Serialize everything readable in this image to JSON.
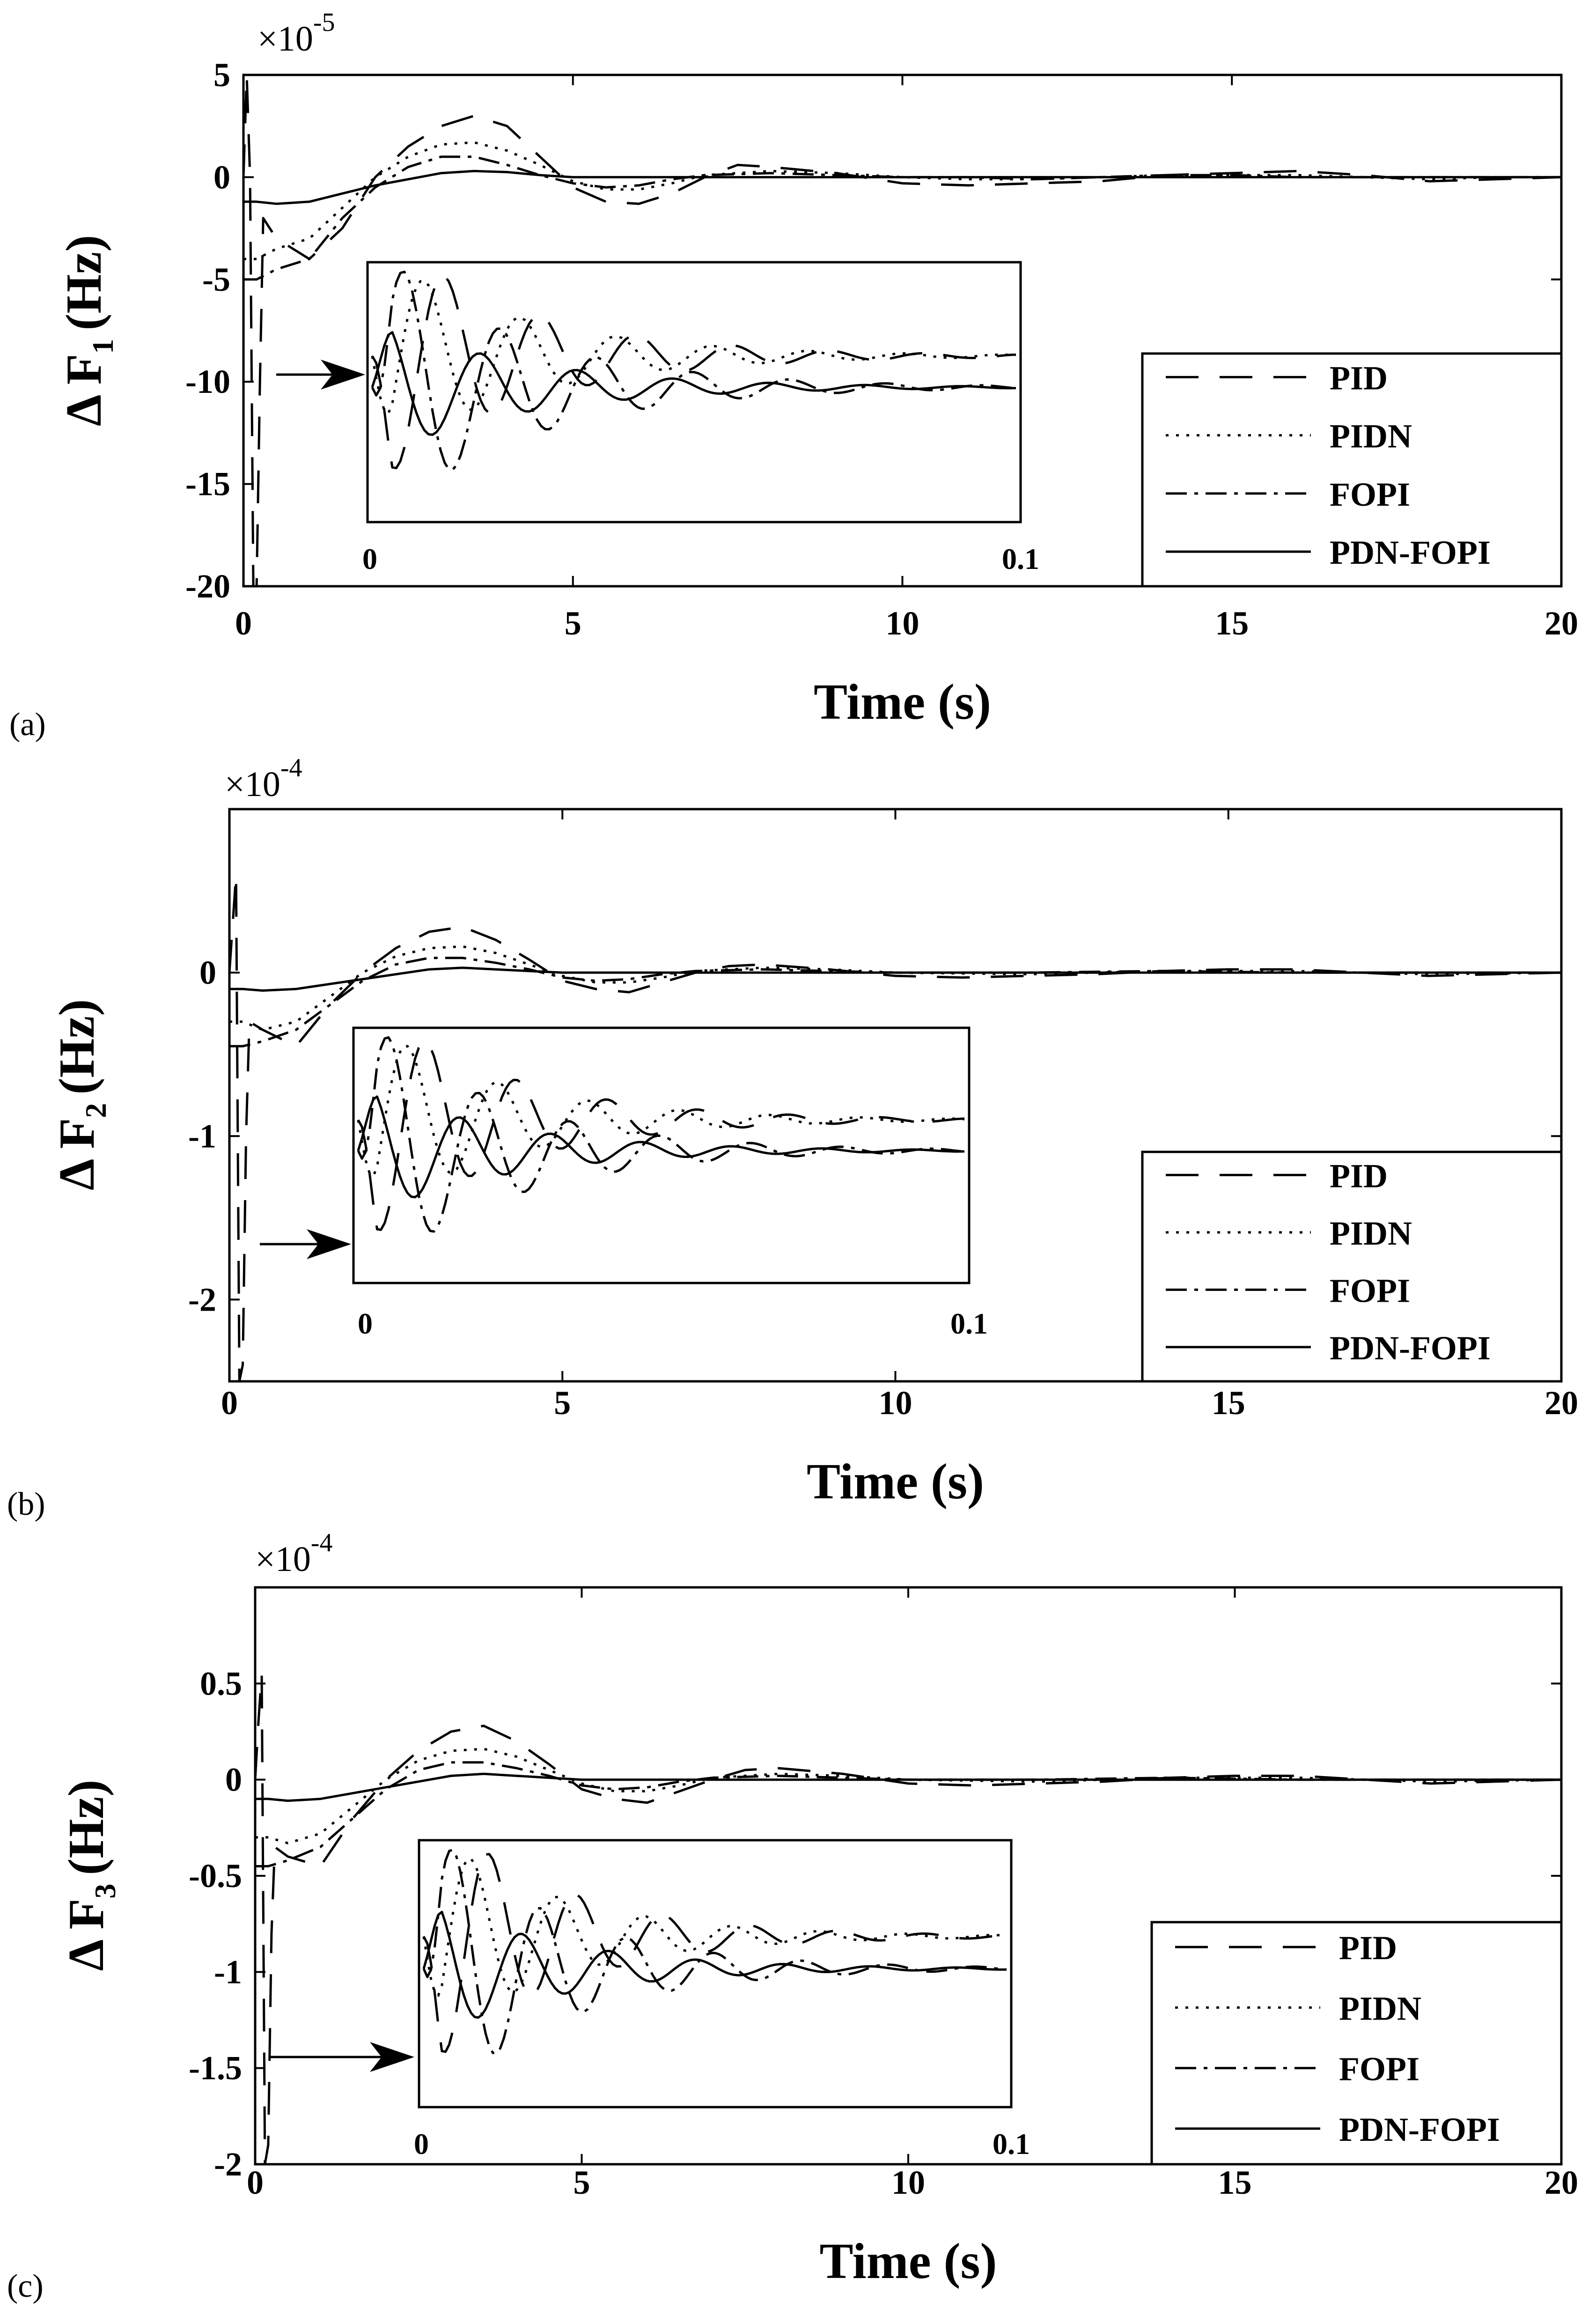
{
  "figure": {
    "x_axis_title": "Time (s)",
    "legend_labels": [
      "PID",
      "PIDN",
      "FOPI",
      "PDN-FOPI"
    ],
    "x_ticks": [
      "0",
      "5",
      "10",
      "15",
      "20"
    ],
    "inset_ticks": [
      "0",
      "0.1"
    ]
  },
  "chart_data": [
    {
      "type": "line",
      "panel_label": "(a)",
      "title": "",
      "xlabel": "Time (s)",
      "ylabel": "Δ F1 (Hz)",
      "ylabel_symbol": "Δ F",
      "ylabel_sub": "1",
      "ylabel_unit": "(Hz)",
      "exponent_base": "×10",
      "exponent_power": "-5",
      "xlim": [
        0,
        20
      ],
      "ylim": [
        -20,
        5
      ],
      "x_ticks": [
        0,
        5,
        10,
        15,
        20
      ],
      "x_tick_labels": [
        "0",
        "5",
        "10",
        "15",
        "20"
      ],
      "y_ticks": [
        5,
        0,
        -5,
        -10,
        -15,
        -20
      ],
      "y_tick_labels": [
        "5",
        "0",
        "-5",
        "-10",
        "-15",
        "-20"
      ],
      "legend": [
        "PID",
        "PIDN",
        "FOPI",
        "PDN-FOPI"
      ],
      "legend_position": "right",
      "inset_x_labels": [
        "0",
        "0.1"
      ],
      "series": [
        {
          "name": "PID",
          "x": [
            0,
            0.05,
            0.1,
            0.15,
            0.2,
            0.25,
            0.3,
            0.5,
            1.0,
            1.5,
            2.0,
            2.5,
            3.0,
            3.5,
            4.0,
            4.5,
            5.0,
            5.5,
            6.0,
            6.5,
            7.0,
            7.5,
            8.0,
            9.0,
            10.0,
            11.0,
            12.0,
            13.0,
            14.0,
            15.0,
            16.0,
            17.0,
            18.0,
            19.0,
            20.0
          ],
          "y": [
            0,
            5,
            0,
            -20,
            -20,
            -10,
            -2,
            -3,
            -4,
            -2.5,
            0,
            1.5,
            2.5,
            3.0,
            2.5,
            1.0,
            -0.5,
            -1.2,
            -1.3,
            -0.8,
            0,
            0.6,
            0.5,
            0.2,
            -0.3,
            -0.4,
            -0.3,
            -0.2,
            0.1,
            0.2,
            0.3,
            0.1,
            -0.2,
            -0.1,
            0
          ]
        },
        {
          "name": "PIDN",
          "x": [
            0,
            0.2,
            0.5,
            1.0,
            1.5,
            2.0,
            2.5,
            3.0,
            3.5,
            4.0,
            4.5,
            5.0,
            5.5,
            6.0,
            6.5,
            7.0,
            8.0,
            9.0,
            10.0,
            11.0,
            12.0,
            13.0,
            14.0,
            15.0,
            16.0,
            17.0,
            18.0,
            19.0,
            20.0
          ],
          "y": [
            -4,
            -4,
            -3.5,
            -3.0,
            -1.5,
            0,
            1.0,
            1.6,
            1.7,
            1.3,
            0.6,
            -0.2,
            -0.6,
            -0.6,
            -0.3,
            0.1,
            0.3,
            0.2,
            0,
            -0.1,
            -0.1,
            0,
            0.1,
            0.1,
            0.1,
            0,
            -0.1,
            0,
            0
          ]
        },
        {
          "name": "FOPI",
          "x": [
            0,
            0.2,
            0.5,
            1.0,
            1.5,
            2.0,
            2.5,
            3.0,
            3.5,
            4.0,
            4.5,
            5.0,
            5.5,
            6.0,
            6.5,
            7.0,
            8.0,
            9.0,
            10.0,
            11.0,
            12.0,
            13.0,
            14.0,
            15.0,
            16.0,
            17.0,
            18.0,
            19.0,
            20.0
          ],
          "y": [
            -5,
            -5,
            -4.5,
            -4.0,
            -2.0,
            -0.5,
            0.5,
            1.0,
            1.0,
            0.6,
            0.1,
            -0.3,
            -0.5,
            -0.4,
            -0.1,
            0.1,
            0.2,
            0.1,
            0,
            0,
            -0.1,
            0,
            0.1,
            0.1,
            0,
            0,
            0,
            0,
            0
          ]
        },
        {
          "name": "PDN-FOPI",
          "x": [
            0,
            0.2,
            0.5,
            1.0,
            1.5,
            2.0,
            2.5,
            3.0,
            3.5,
            4.0,
            4.5,
            5.0,
            6.0,
            7.0,
            8.0,
            10.0,
            12.0,
            14.0,
            16.0,
            18.0,
            20.0
          ],
          "y": [
            -1.2,
            -1.2,
            -1.3,
            -1.2,
            -0.8,
            -0.4,
            -0.1,
            0.2,
            0.3,
            0.25,
            0.1,
            0,
            0,
            0,
            0,
            0,
            0,
            0,
            0,
            0,
            0
          ]
        }
      ]
    },
    {
      "type": "line",
      "panel_label": "(b)",
      "title": "",
      "xlabel": "Time (s)",
      "ylabel": "Δ F2 (Hz)",
      "ylabel_symbol": "Δ F",
      "ylabel_sub": "2",
      "ylabel_unit": "(Hz)",
      "exponent_base": "×10",
      "exponent_power": "-4",
      "xlim": [
        0,
        20
      ],
      "ylim": [
        -2.5,
        1.0
      ],
      "x_ticks": [
        0,
        5,
        10,
        15,
        20
      ],
      "x_tick_labels": [
        "0",
        "5",
        "10",
        "15",
        "20"
      ],
      "y_ticks": [
        0,
        -1,
        -2
      ],
      "y_tick_labels": [
        "0",
        "-1",
        "-2"
      ],
      "legend": [
        "PID",
        "PIDN",
        "FOPI",
        "PDN-FOPI"
      ],
      "legend_position": "right",
      "inset_x_labels": [
        "0",
        "0.1"
      ],
      "series": [
        {
          "name": "PID",
          "x": [
            0,
            0.05,
            0.1,
            0.15,
            0.2,
            0.25,
            0.3,
            0.5,
            1.0,
            1.5,
            2.0,
            2.5,
            3.0,
            3.5,
            4.0,
            4.5,
            5.0,
            5.5,
            6.0,
            6.5,
            7.0,
            7.5,
            8.0,
            9.0,
            10.0,
            11.0,
            12.0,
            13.0,
            14.0,
            15.0,
            16.0,
            17.0,
            18.0,
            19.0,
            20.0
          ],
          "y": [
            0,
            0.3,
            0.6,
            -2.5,
            -2.4,
            -1.0,
            -0.3,
            -0.35,
            -0.45,
            -0.2,
            0,
            0.15,
            0.25,
            0.28,
            0.2,
            0.08,
            -0.05,
            -0.1,
            -0.12,
            -0.06,
            0,
            0.04,
            0.05,
            0.02,
            -0.02,
            -0.03,
            -0.02,
            -0.01,
            0.01,
            0.02,
            0.02,
            0,
            -0.02,
            -0.01,
            0
          ]
        },
        {
          "name": "PIDN",
          "x": [
            0,
            0.2,
            0.5,
            1.0,
            1.5,
            2.0,
            2.5,
            3.0,
            3.5,
            4.0,
            4.5,
            5.0,
            5.5,
            6.0,
            6.5,
            7.0,
            8.0,
            9.0,
            10.0,
            12.0,
            14.0,
            16.0,
            18.0,
            20.0
          ],
          "y": [
            -0.3,
            -0.3,
            -0.35,
            -0.3,
            -0.15,
            0,
            0.1,
            0.15,
            0.16,
            0.12,
            0.05,
            -0.02,
            -0.06,
            -0.06,
            -0.03,
            0.01,
            0.03,
            0.02,
            0,
            -0.01,
            0.01,
            0.01,
            -0.01,
            0
          ]
        },
        {
          "name": "FOPI",
          "x": [
            0,
            0.2,
            0.5,
            1.0,
            1.5,
            2.0,
            2.5,
            3.0,
            3.5,
            4.0,
            4.5,
            5.0,
            5.5,
            6.0,
            6.5,
            7.0,
            8.0,
            9.0,
            10.0,
            12.0,
            14.0,
            16.0,
            18.0,
            20.0
          ],
          "y": [
            -0.45,
            -0.45,
            -0.42,
            -0.35,
            -0.2,
            -0.05,
            0.05,
            0.09,
            0.09,
            0.06,
            0.02,
            -0.03,
            -0.05,
            -0.04,
            -0.01,
            0.01,
            0.02,
            0.01,
            0,
            0,
            0.01,
            0,
            0,
            0
          ]
        },
        {
          "name": "PDN-FOPI",
          "x": [
            0,
            0.2,
            0.5,
            1.0,
            1.5,
            2.0,
            2.5,
            3.0,
            3.5,
            4.0,
            4.5,
            5.0,
            6.0,
            8.0,
            10.0,
            12.0,
            14.0,
            16.0,
            18.0,
            20.0
          ],
          "y": [
            -0.1,
            -0.1,
            -0.11,
            -0.1,
            -0.07,
            -0.04,
            -0.01,
            0.02,
            0.03,
            0.02,
            0.01,
            0,
            0,
            0,
            0,
            0,
            0,
            0,
            0,
            0
          ]
        }
      ]
    },
    {
      "type": "line",
      "panel_label": "(c)",
      "title": "",
      "xlabel": "Time (s)",
      "ylabel": "Δ F3 (Hz)",
      "ylabel_symbol": "Δ F",
      "ylabel_sub": "3",
      "ylabel_unit": "(Hz)",
      "exponent_base": "×10",
      "exponent_power": "-4",
      "xlim": [
        0,
        20
      ],
      "ylim": [
        -2,
        1
      ],
      "x_ticks": [
        0,
        5,
        10,
        15,
        20
      ],
      "x_tick_labels": [
        "0",
        "5",
        "10",
        "15",
        "20"
      ],
      "y_ticks": [
        0.5,
        0,
        -0.5,
        -1,
        -1.5,
        -2
      ],
      "y_tick_labels": [
        "0.5",
        "0",
        "-0.5",
        "-1",
        "-1.5",
        "-2"
      ],
      "legend": [
        "PID",
        "PIDN",
        "FOPI",
        "PDN-FOPI"
      ],
      "legend_position": "right",
      "inset_x_labels": [
        "0",
        "0.1"
      ],
      "series": [
        {
          "name": "PID",
          "x": [
            0,
            0.05,
            0.1,
            0.15,
            0.2,
            0.25,
            0.3,
            0.5,
            1.0,
            1.5,
            2.0,
            2.5,
            3.0,
            3.5,
            4.0,
            4.5,
            5.0,
            5.5,
            6.0,
            6.5,
            7.0,
            7.5,
            8.0,
            9.0,
            10.0,
            11.0,
            12.0,
            13.0,
            14.0,
            15.0,
            16.0,
            17.0,
            18.0,
            19.0,
            20.0
          ],
          "y": [
            0,
            0.3,
            0.55,
            -2.0,
            -1.9,
            -0.8,
            -0.35,
            -0.4,
            -0.45,
            -0.2,
            0,
            0.15,
            0.25,
            0.28,
            0.2,
            0.08,
            -0.05,
            -0.1,
            -0.12,
            -0.06,
            0,
            0.05,
            0.06,
            0.03,
            -0.02,
            -0.03,
            -0.02,
            -0.01,
            0.01,
            0.02,
            0.02,
            0,
            -0.02,
            -0.01,
            0
          ]
        },
        {
          "name": "PIDN",
          "x": [
            0,
            0.2,
            0.5,
            1.0,
            1.5,
            2.0,
            2.5,
            3.0,
            3.5,
            4.0,
            4.5,
            5.0,
            5.5,
            6.0,
            6.5,
            7.0,
            8.0,
            9.0,
            10.0,
            12.0,
            14.0,
            16.0,
            18.0,
            20.0
          ],
          "y": [
            -0.3,
            -0.3,
            -0.33,
            -0.28,
            -0.14,
            0,
            0.1,
            0.15,
            0.16,
            0.12,
            0.05,
            -0.02,
            -0.06,
            -0.06,
            -0.03,
            0.01,
            0.03,
            0.02,
            0,
            -0.01,
            0.01,
            0.01,
            -0.01,
            0
          ]
        },
        {
          "name": "FOPI",
          "x": [
            0,
            0.2,
            0.5,
            1.0,
            1.5,
            2.0,
            2.5,
            3.0,
            3.5,
            4.0,
            4.5,
            5.0,
            5.5,
            6.0,
            6.5,
            7.0,
            8.0,
            9.0,
            10.0,
            12.0,
            14.0,
            16.0,
            18.0,
            20.0
          ],
          "y": [
            -0.45,
            -0.45,
            -0.42,
            -0.35,
            -0.2,
            -0.05,
            0.05,
            0.09,
            0.09,
            0.06,
            0.02,
            -0.03,
            -0.05,
            -0.04,
            -0.01,
            0.01,
            0.02,
            0.01,
            0,
            0,
            0.01,
            0,
            0,
            0
          ]
        },
        {
          "name": "PDN-FOPI",
          "x": [
            0,
            0.2,
            0.5,
            1.0,
            1.5,
            2.0,
            2.5,
            3.0,
            3.5,
            4.0,
            4.5,
            5.0,
            6.0,
            8.0,
            10.0,
            12.0,
            14.0,
            16.0,
            18.0,
            20.0
          ],
          "y": [
            -0.1,
            -0.1,
            -0.11,
            -0.1,
            -0.07,
            -0.04,
            -0.01,
            0.02,
            0.03,
            0.02,
            0.01,
            0,
            0,
            0,
            0,
            0,
            0,
            0,
            0,
            0
          ]
        }
      ]
    }
  ]
}
